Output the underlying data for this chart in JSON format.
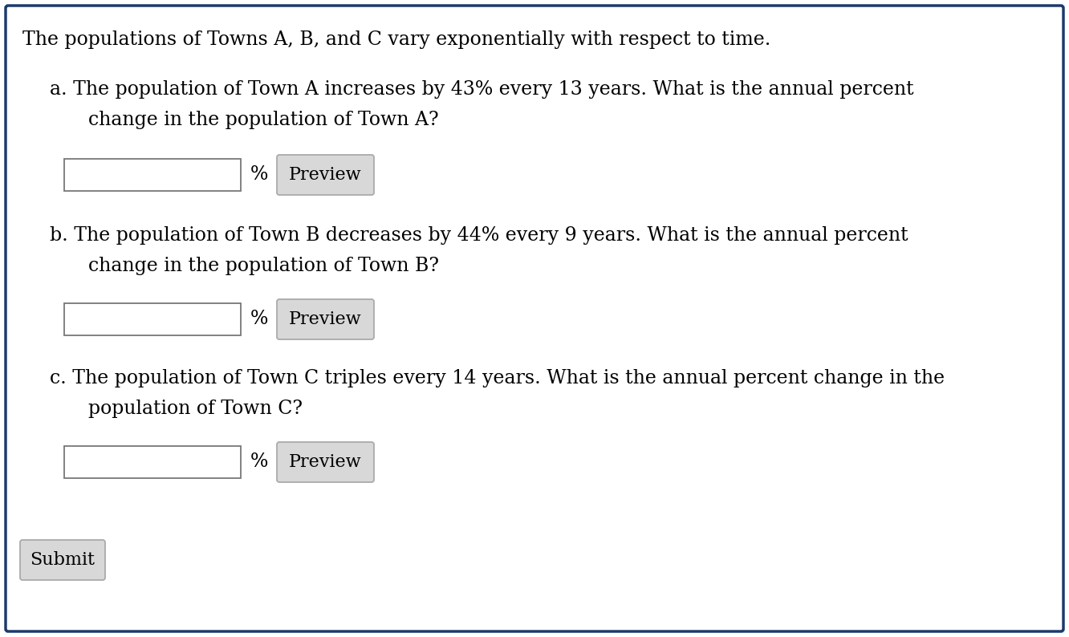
{
  "title": "The populations of Towns A, B, and C vary exponentially with respect to time.",
  "question_a_line1": "a. The population of Town A increases by 43% every 13 years. What is the annual percent",
  "question_a_line2": "    change in the population of Town A?",
  "question_b_line1": "b. The population of Town B decreases by 44% every 9 years. What is the annual percent",
  "question_b_line2": "    change in the population of Town B?",
  "question_c_line1": "c. The population of Town C triples every 14 years. What is the annual percent change in the",
  "question_c_line2": "    population of Town C?",
  "submit_label": "Submit",
  "preview_label": "Preview",
  "percent_label": "%",
  "bg_color": "#ffffff",
  "border_color": "#1a3a6b",
  "input_box_color": "#ffffff",
  "button_bg_color": "#d8d8d8",
  "button_border_color": "#aaaaaa",
  "text_color": "#000000",
  "font_size_title": 17,
  "font_size_body": 17,
  "font_size_button": 16,
  "font_family": "DejaVu Serif"
}
